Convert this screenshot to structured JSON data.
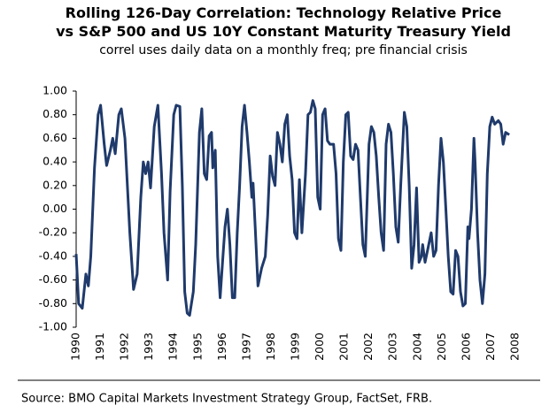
{
  "chart_data": {
    "type": "line",
    "title": [
      "Rolling 126-Day Correlation: Technology Relative Price",
      "vs S&P 500 and US 10Y Constant Maturity Treasury Yield"
    ],
    "subtitle": "correl uses daily data on a monthly freq; pre financial crisis",
    "source": "Source: BMO Capital Markets Investment Strategy Group, FactSet, FRB.",
    "color": "#1f3a6b",
    "xlim": [
      1990,
      2008
    ],
    "xticks": [
      1990,
      1991,
      1992,
      1993,
      1994,
      1995,
      1996,
      1997,
      1998,
      1999,
      2000,
      2001,
      2002,
      2003,
      2004,
      2005,
      2006,
      2007,
      2008
    ],
    "ylim": [
      -1,
      1
    ],
    "yticks": [
      {
        "value": 1,
        "label": "1.00"
      },
      {
        "value": 0.8,
        "label": "0.80"
      },
      {
        "value": 0.6,
        "label": "0.60"
      },
      {
        "value": 0.4,
        "label": "0.40"
      },
      {
        "value": 0.2,
        "label": "0.20"
      },
      {
        "value": 0,
        "label": "0.00"
      },
      {
        "value": -0.2,
        "label": "-0.20"
      },
      {
        "value": -0.4,
        "label": "-0.40"
      },
      {
        "value": -0.6,
        "label": "-0.60"
      },
      {
        "value": -0.8,
        "label": "-0.80"
      },
      {
        "value": -1,
        "label": "-1.00"
      }
    ],
    "x": [
      1990.0,
      1990.1,
      1990.25,
      1990.4,
      1990.5,
      1990.6,
      1990.75,
      1990.9,
      1991.0,
      1991.15,
      1991.25,
      1991.4,
      1991.5,
      1991.6,
      1991.75,
      1991.85,
      1992.0,
      1992.2,
      1992.35,
      1992.5,
      1992.65,
      1992.75,
      1992.85,
      1992.95,
      1993.05,
      1993.2,
      1993.35,
      1993.5,
      1993.6,
      1993.75,
      1993.85,
      1994.0,
      1994.1,
      1994.25,
      1994.35,
      1994.45,
      1994.55,
      1994.65,
      1994.8,
      1994.9,
      1995.05,
      1995.15,
      1995.25,
      1995.35,
      1995.45,
      1995.55,
      1995.6,
      1995.7,
      1995.8,
      1995.9,
      1996.0,
      1996.1,
      1996.2,
      1996.3,
      1996.4,
      1996.5,
      1996.6,
      1996.7,
      1996.8,
      1996.9,
      1997.0,
      1997.1,
      1997.2,
      1997.25,
      1997.35,
      1997.45,
      1997.6,
      1997.75,
      1997.85,
      1997.95,
      1998.05,
      1998.15,
      1998.25,
      1998.35,
      1998.45,
      1998.55,
      1998.65,
      1998.75,
      1998.85,
      1998.95,
      1999.05,
      1999.15,
      1999.25,
      1999.4,
      1999.5,
      1999.6,
      1999.7,
      1999.8,
      1999.9,
      2000.0,
      2000.1,
      2000.2,
      2000.3,
      2000.4,
      2000.55,
      2000.65,
      2000.75,
      2000.85,
      2000.95,
      2001.05,
      2001.15,
      2001.25,
      2001.35,
      2001.45,
      2001.55,
      2001.65,
      2001.75,
      2001.85,
      2002.0,
      2002.1,
      2002.2,
      2002.3,
      2002.4,
      2002.5,
      2002.6,
      2002.7,
      2002.8,
      2002.9,
      2003.0,
      2003.1,
      2003.2,
      2003.3,
      2003.45,
      2003.55,
      2003.65,
      2003.75,
      2003.85,
      2003.95,
      2004.05,
      2004.15,
      2004.2,
      2004.3,
      2004.4,
      2004.55,
      2004.65,
      2004.75,
      2004.85,
      2004.95,
      2005.05,
      2005.15,
      2005.25,
      2005.35,
      2005.45,
      2005.55,
      2005.65,
      2005.75,
      2005.85,
      2005.95,
      2006.05,
      2006.1,
      2006.2,
      2006.3,
      2006.35,
      2006.45,
      2006.55,
      2006.65,
      2006.75,
      2006.85,
      2006.95,
      2007.05,
      2007.15,
      2007.3,
      2007.4,
      2007.5,
      2007.6,
      2007.75
    ],
    "values": [
      -0.38,
      -0.8,
      -0.84,
      -0.55,
      -0.65,
      -0.4,
      0.35,
      0.8,
      0.88,
      0.55,
      0.37,
      0.5,
      0.6,
      0.47,
      0.8,
      0.85,
      0.6,
      -0.2,
      -0.68,
      -0.55,
      0.1,
      0.4,
      0.3,
      0.4,
      0.18,
      0.7,
      0.88,
      0.3,
      -0.2,
      -0.6,
      0.15,
      0.8,
      0.88,
      0.87,
      0.2,
      -0.7,
      -0.88,
      -0.9,
      -0.7,
      -0.3,
      0.65,
      0.85,
      0.3,
      0.25,
      0.62,
      0.65,
      0.35,
      0.5,
      -0.4,
      -0.75,
      -0.45,
      -0.15,
      0.0,
      -0.3,
      -0.75,
      -0.75,
      -0.2,
      0.2,
      0.7,
      0.88,
      0.65,
      0.4,
      0.1,
      0.22,
      -0.2,
      -0.65,
      -0.5,
      -0.4,
      -0.05,
      0.45,
      0.28,
      0.2,
      0.65,
      0.55,
      0.4,
      0.72,
      0.8,
      0.45,
      0.25,
      -0.2,
      -0.25,
      0.25,
      -0.2,
      0.3,
      0.8,
      0.82,
      0.92,
      0.85,
      0.1,
      0.0,
      0.8,
      0.85,
      0.58,
      0.55,
      0.55,
      0.3,
      -0.25,
      -0.35,
      0.4,
      0.8,
      0.82,
      0.45,
      0.42,
      0.55,
      0.5,
      0.1,
      -0.3,
      -0.4,
      0.55,
      0.7,
      0.65,
      0.45,
      0.1,
      -0.2,
      -0.35,
      0.55,
      0.72,
      0.65,
      0.3,
      -0.15,
      -0.28,
      0.2,
      0.82,
      0.7,
      0.2,
      -0.5,
      -0.3,
      0.18,
      -0.45,
      -0.4,
      -0.3,
      -0.45,
      -0.35,
      -0.2,
      -0.4,
      -0.35,
      0.2,
      0.6,
      0.4,
      0.0,
      -0.4,
      -0.7,
      -0.72,
      -0.35,
      -0.4,
      -0.7,
      -0.82,
      -0.8,
      -0.15,
      -0.25,
      0.0,
      0.6,
      0.4,
      -0.2,
      -0.6,
      -0.8,
      -0.55,
      0.3,
      0.7,
      0.78,
      0.72,
      0.75,
      0.72,
      0.55,
      0.65,
      0.63
    ]
  }
}
